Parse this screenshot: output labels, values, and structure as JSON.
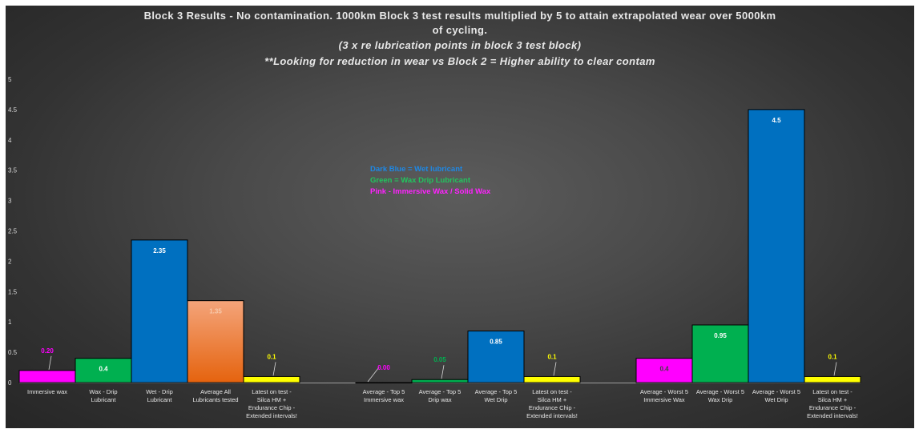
{
  "chart_data": {
    "type": "bar",
    "title": [
      "Block 3 Results - No contamination. 1000km Block 3 test results multiplied by 5 to attain extrapolated wear over 5000km",
      "of cycling.",
      "(3 x re lubrication points in block 3 test block)",
      "**Looking for reduction in wear vs Block 2 = Higher ability to clear contam"
    ],
    "ylim": [
      0,
      5
    ],
    "yticks": [
      "0",
      "0.5",
      "1",
      "1.5",
      "2",
      "2.5",
      "3",
      "3.5",
      "4",
      "4.5",
      "5"
    ],
    "grid": false,
    "legend": [
      {
        "text": "Dark Blue = Wet lubricant",
        "color": "#1e88e5"
      },
      {
        "text": "Green = Wax Drip Lubricant",
        "color": "#22c55e"
      },
      {
        "text": "Pink - Immersive Wax / Solid Wax",
        "color": "#ff22ff"
      }
    ],
    "bars": [
      {
        "category": [
          "Immersive wax"
        ],
        "value": 0.2,
        "label": "0.20",
        "fill": "#ff00ff",
        "label_color": "#ff00ff",
        "label_outside": true
      },
      {
        "category": [
          "Wax - Drip",
          "Lubricant"
        ],
        "value": 0.4,
        "label": "0.4",
        "fill": "#00b050",
        "label_color": "#ffffff",
        "label_outside": false
      },
      {
        "category": [
          "Wet - Drip",
          "Lubricant"
        ],
        "value": 2.35,
        "label": "2.35",
        "fill": "#0070c0",
        "label_color": "#ffffff",
        "label_outside": false
      },
      {
        "category": [
          "Average All",
          "Lubricants tested"
        ],
        "value": 1.35,
        "label": "1.35",
        "fill": "gradient-orange",
        "label_color": "#f8cbad",
        "label_outside": false
      },
      {
        "category": [
          "Latest on test -",
          "Silca HM +",
          "Endurance Chip -",
          "Extended intervals!"
        ],
        "value": 0.1,
        "label": "0.1",
        "fill": "#ffff00",
        "label_color": "#ffff00",
        "label_outside": true
      },
      {
        "category": [],
        "value": null,
        "label": null,
        "fill": null,
        "label_color": null,
        "label_outside": false
      },
      {
        "category": [
          "Average - Top 5",
          "Immersive wax"
        ],
        "value": 0.0,
        "label": "0.00",
        "fill": "#ff00ff",
        "label_color": "#ff00ff",
        "label_outside": true
      },
      {
        "category": [
          "Average - Top 5",
          "Drip wax"
        ],
        "value": 0.05,
        "label": "0.05",
        "fill": "#00b050",
        "label_color": "#00b050",
        "label_outside": true
      },
      {
        "category": [
          "Average - Top 5",
          "Wet Drip"
        ],
        "value": 0.85,
        "label": "0.85",
        "fill": "#0070c0",
        "label_color": "#ffffff",
        "label_outside": false
      },
      {
        "category": [
          "Latest on test -",
          "Silca HM +",
          "Endurance Chip -",
          "Extended intervals!"
        ],
        "value": 0.1,
        "label": "0.1",
        "fill": "#ffff00",
        "label_color": "#ffff00",
        "label_outside": true
      },
      {
        "category": [],
        "value": null,
        "label": null,
        "fill": null,
        "label_color": null,
        "label_outside": false
      },
      {
        "category": [
          "Average - Worst 5",
          "Immersive Wax"
        ],
        "value": 0.4,
        "label": "0.4",
        "fill": "#ff00ff",
        "label_color": "#404040",
        "label_outside": false
      },
      {
        "category": [
          "Average - Worst 5",
          "Wax Drip"
        ],
        "value": 0.95,
        "label": "0.95",
        "fill": "#00b050",
        "label_color": "#ffffff",
        "label_outside": false
      },
      {
        "category": [
          "Average - Worst 5",
          "Wet Drip"
        ],
        "value": 4.5,
        "label": "4.5",
        "fill": "#0070c0",
        "label_color": "#ffffff",
        "label_outside": false
      },
      {
        "category": [
          "Latest on test -",
          "Silca HM +",
          "Endurance Chip -",
          "Extended intervals!"
        ],
        "value": 0.1,
        "label": "0.1",
        "fill": "#ffff00",
        "label_color": "#ffff00",
        "label_outside": true
      }
    ]
  }
}
